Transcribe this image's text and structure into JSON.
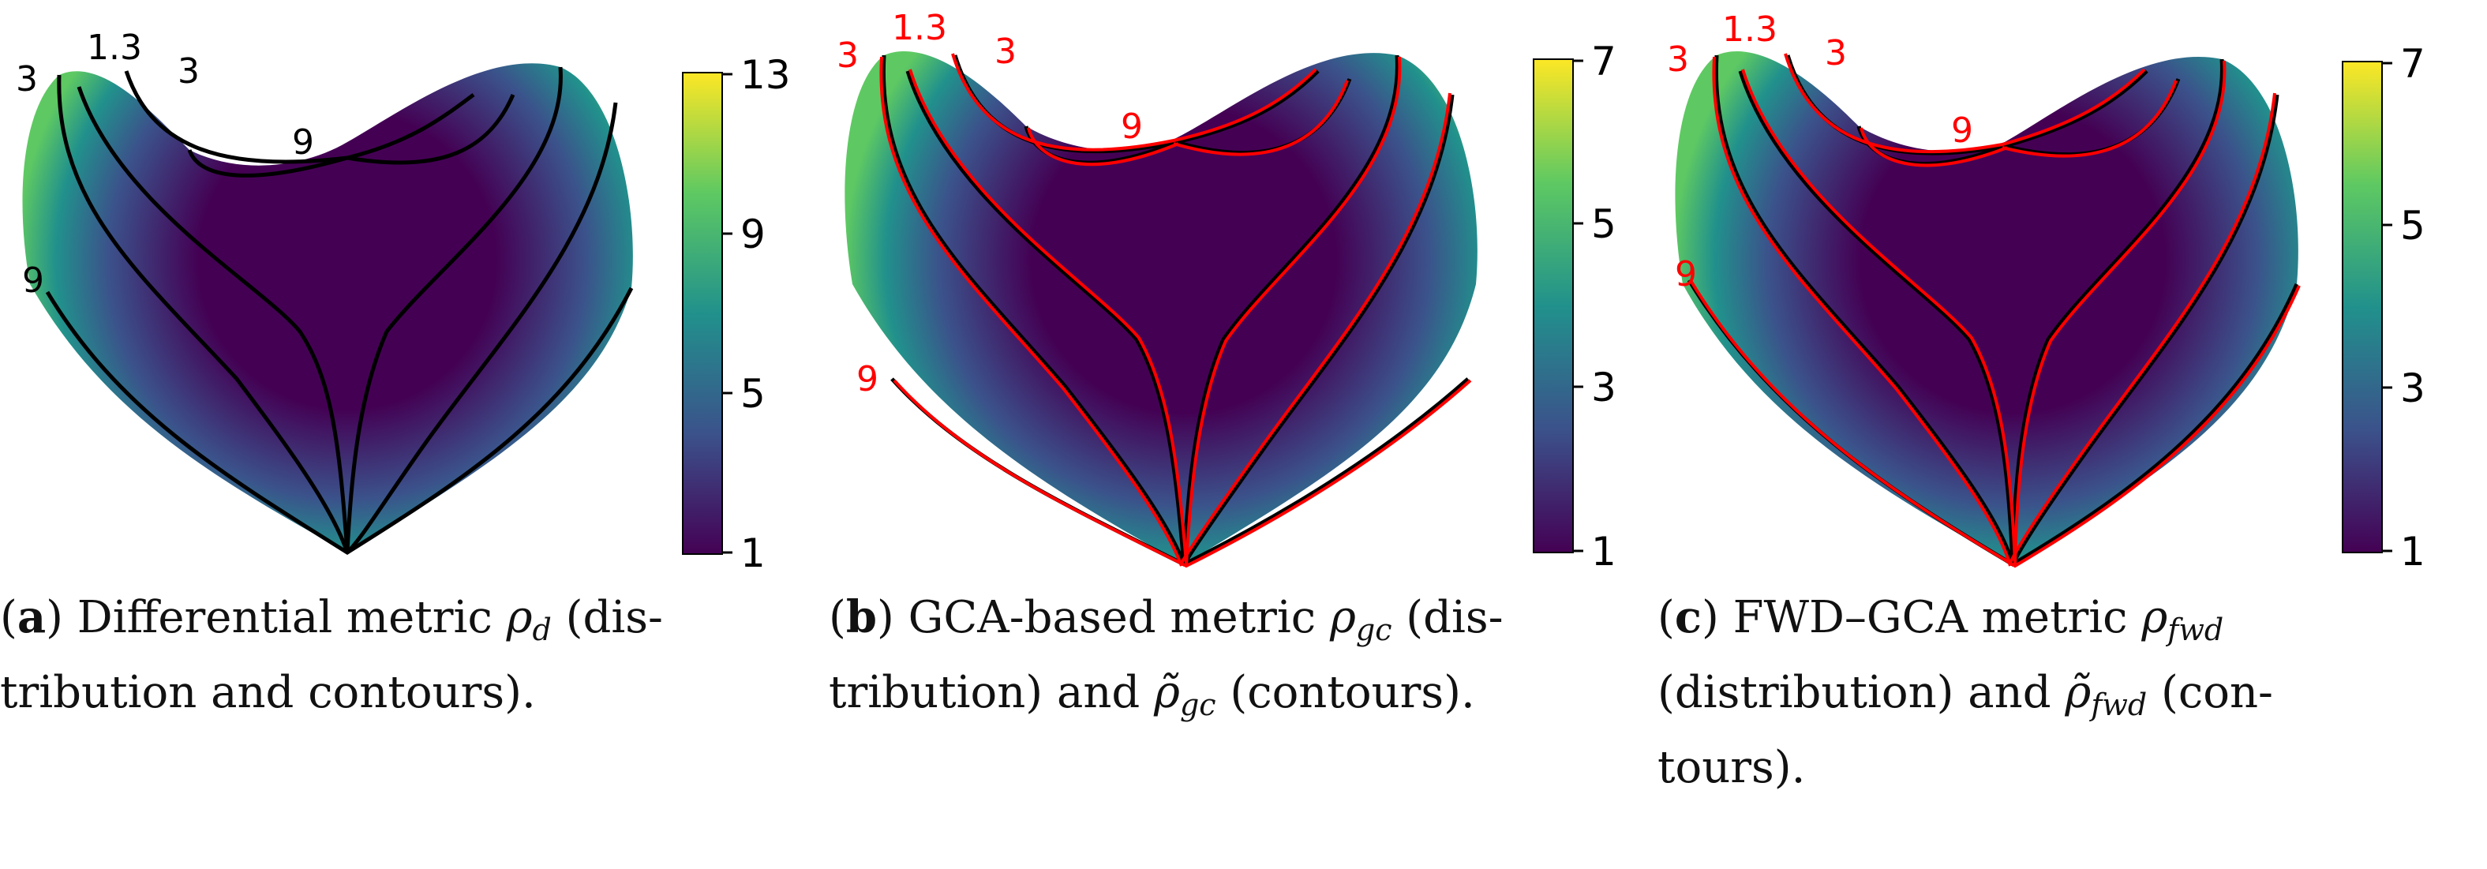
{
  "figure": {
    "panels": [
      {
        "id": "a",
        "caption": {
          "letter": "a",
          "lines": [
            {
              "pre": ") Differential metric ",
              "sym": "ρ",
              "sub": "d",
              "post": " (dis-"
            },
            {
              "text": "tribution and contours)."
            }
          ]
        },
        "colorbar": {
          "ticks": [
            "1",
            "5",
            "9",
            "13"
          ],
          "min": 1,
          "max": 13
        },
        "contour_labels": [
          "1.3",
          "3",
          "3",
          "9",
          "9"
        ],
        "contour_color": "#000000",
        "overlay_color": ""
      },
      {
        "id": "b",
        "caption": {
          "letter": "b",
          "lines": [
            {
              "pre": ") GCA-based metric ",
              "sym": "ρ",
              "sub": "gc",
              "post": " (dis-"
            },
            {
              "pre": "tribution) and ",
              "sym": "ρ̃",
              "sub": "gc",
              "post": " (contours)."
            }
          ]
        },
        "colorbar": {
          "ticks": [
            "1",
            "3",
            "5",
            "7"
          ],
          "min": 1,
          "max": 7
        },
        "contour_labels": [
          "1.3",
          "3",
          "3",
          "9",
          "9"
        ],
        "contour_color": "#000000",
        "overlay_color": "#ff0000"
      },
      {
        "id": "c",
        "caption": {
          "letter": "c",
          "lines": [
            {
              "pre": ") FWD–GCA metric ",
              "sym": "ρ",
              "sub": "fwd",
              "post": ""
            },
            {
              "pre": "(distribution) and ",
              "sym": "ρ̃",
              "sub": "fwd",
              "post": " (con-"
            },
            {
              "text": "tours)."
            }
          ]
        },
        "colorbar": {
          "ticks": [
            "1",
            "3",
            "5",
            "7"
          ],
          "min": 1,
          "max": 7
        },
        "contour_labels": [
          "1.3",
          "3",
          "3",
          "9"
        ],
        "contour_color": "#000000",
        "overlay_color": "#ff0000"
      }
    ],
    "colormap": [
      "#440154",
      "#3b528b",
      "#21918c",
      "#5ec962",
      "#fde725"
    ]
  }
}
